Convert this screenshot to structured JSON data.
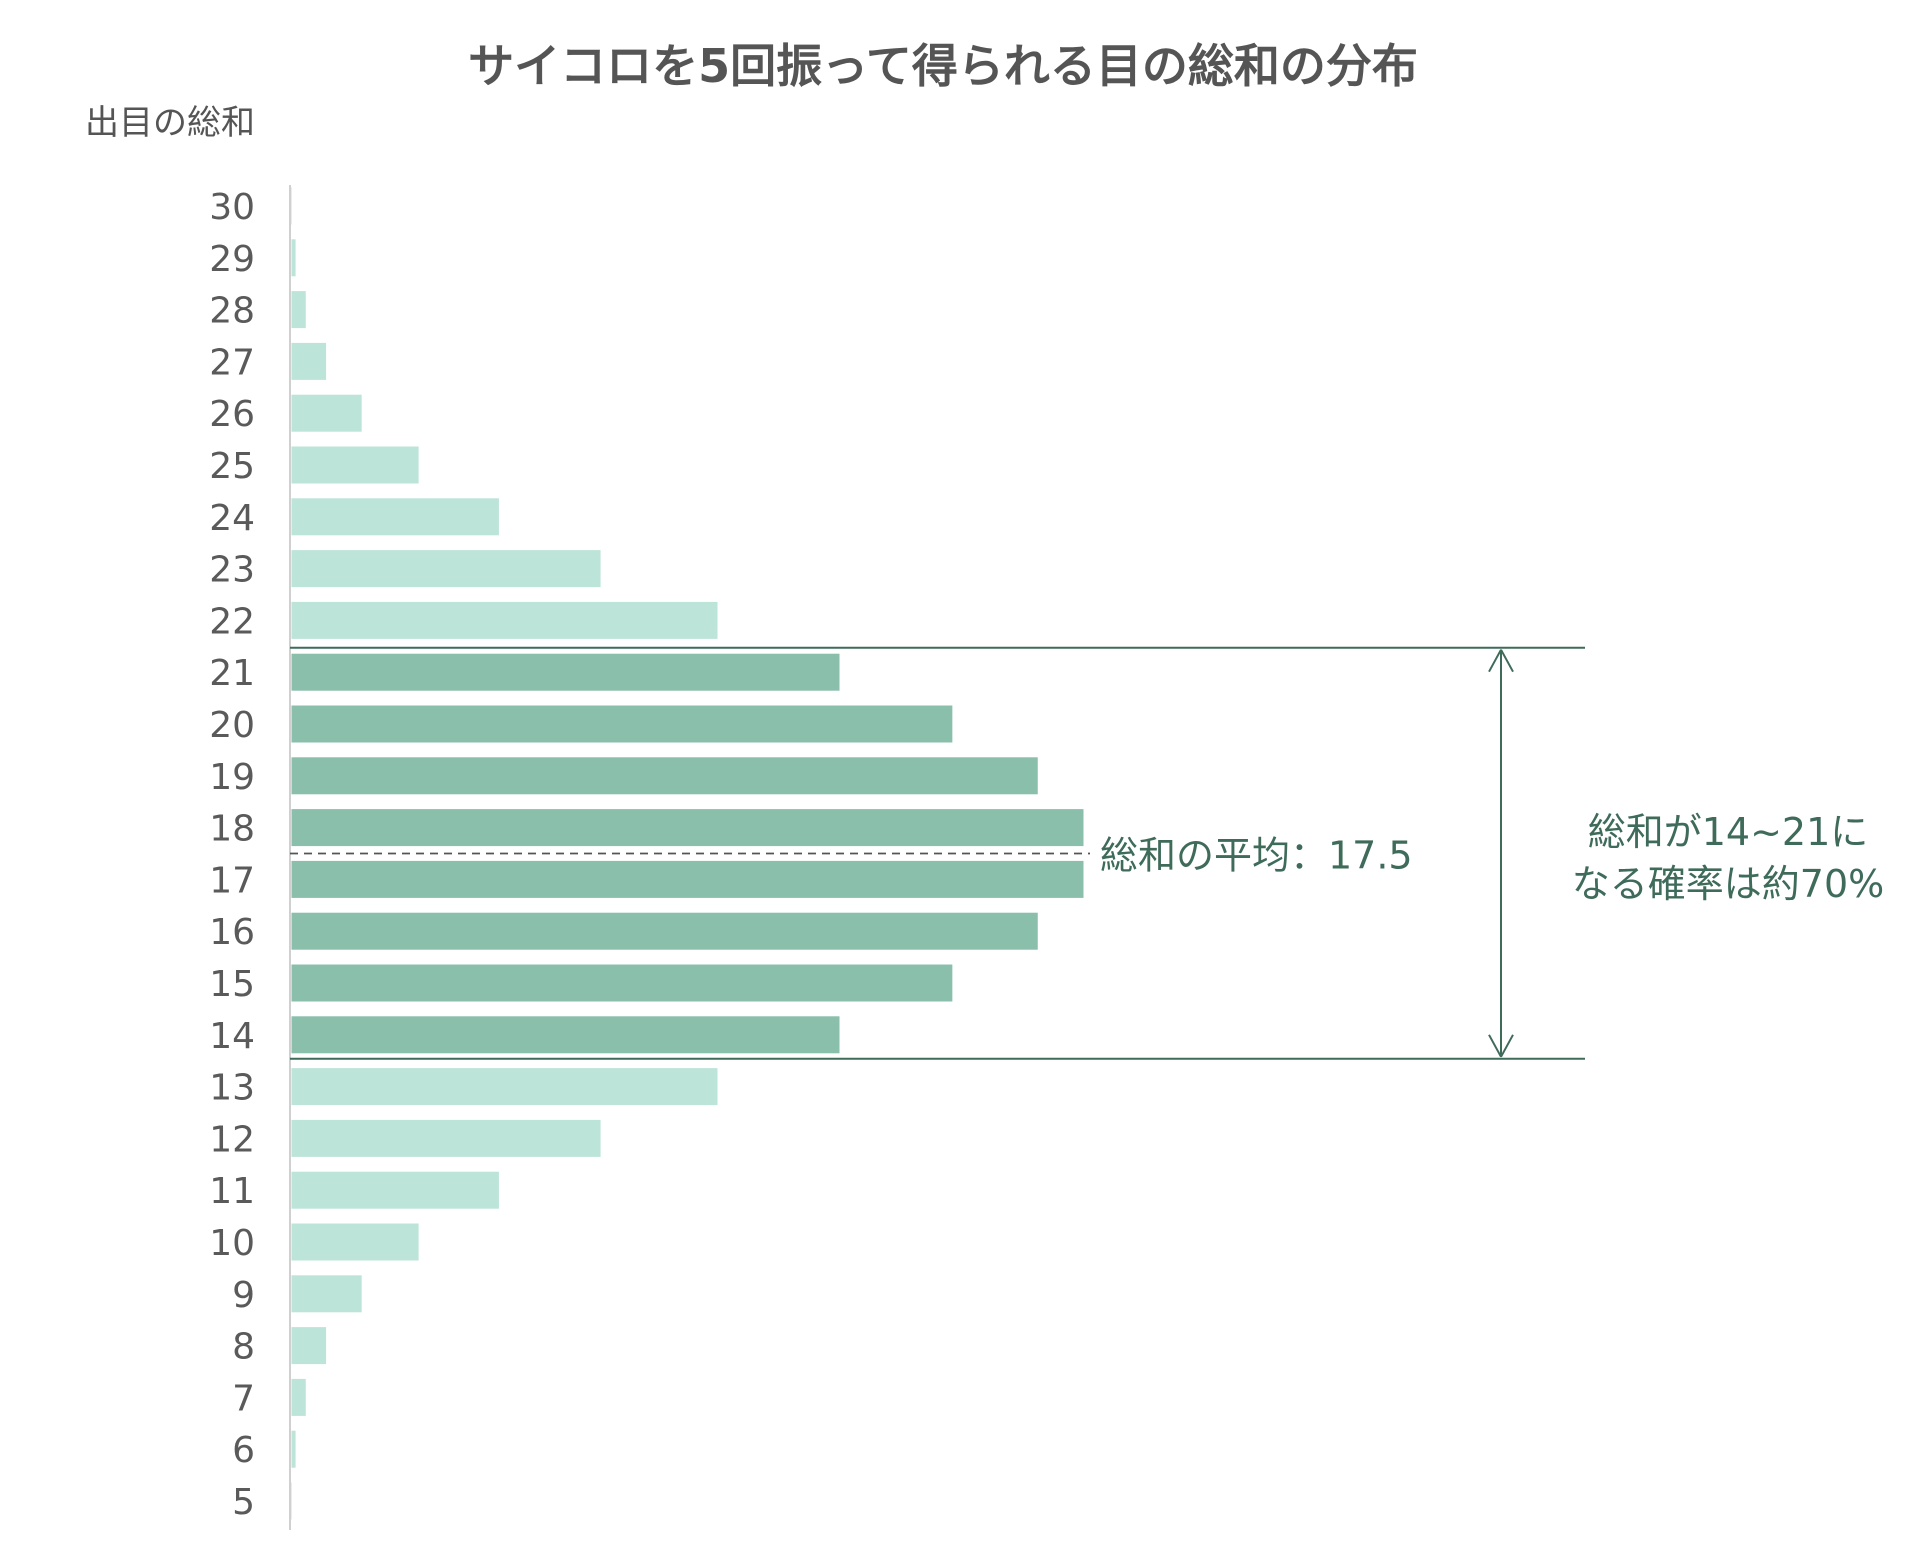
{
  "chart_data": {
    "type": "bar",
    "orientation": "horizontal",
    "title": "サイコロを5回振って得られる目の総和の分布",
    "ylabel": "出目の総和",
    "xlabel": "",
    "categories": [
      5,
      6,
      7,
      8,
      9,
      10,
      11,
      12,
      13,
      14,
      15,
      16,
      17,
      18,
      19,
      20,
      21,
      22,
      23,
      24,
      25,
      26,
      27,
      28,
      29,
      30
    ],
    "values": [
      1,
      5,
      15,
      35,
      70,
      126,
      205,
      305,
      420,
      540,
      651,
      735,
      780,
      780,
      735,
      651,
      540,
      420,
      305,
      205,
      126,
      70,
      35,
      15,
      5,
      1
    ],
    "highlight_range": [
      14,
      21
    ],
    "colors": {
      "base": "#bde4d8",
      "highlight": "#8abfac",
      "annotation": "#3f6b5a",
      "tick": "#5a5a5a",
      "title": "#555555"
    },
    "annotations": {
      "mean_label": "総和の平均：17.5",
      "mean_value": 17.5,
      "range_label_line1": "総和が14~21に",
      "range_label_line2": "なる確率は約70%"
    },
    "grid": false,
    "legend": "none"
  }
}
